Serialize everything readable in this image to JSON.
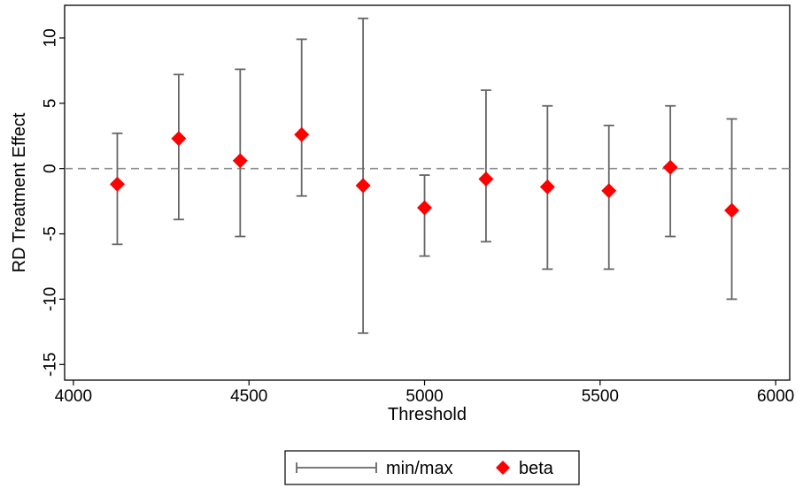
{
  "chart_data": {
    "type": "scatter",
    "title": "",
    "xlabel": "Threshold",
    "ylabel": "RD Treatment Effect",
    "xlim": [
      3975,
      6040
    ],
    "ylim": [
      -16.2,
      12.5
    ],
    "xticks": [
      4000,
      4500,
      5000,
      5500,
      6000
    ],
    "yticks": [
      -15,
      -10,
      -5,
      0,
      5,
      10
    ],
    "reference_line": {
      "y": 0,
      "style": "dashed"
    },
    "grid": false,
    "legend": {
      "placement": "bottom-center",
      "entries": [
        "min/max",
        "beta"
      ]
    },
    "series": [
      {
        "name": "min/max",
        "kind": "range",
        "color": "#666666",
        "x": [
          4125,
          4300,
          4475,
          4650,
          4825,
          5000,
          5175,
          5350,
          5525,
          5700,
          5875
        ],
        "low": [
          -5.8,
          -3.9,
          -5.2,
          -2.1,
          -12.6,
          -6.7,
          -5.6,
          -7.7,
          -7.7,
          -5.2,
          -10.0
        ],
        "high": [
          2.7,
          7.2,
          7.6,
          9.9,
          11.5,
          -0.5,
          6.0,
          4.8,
          3.3,
          4.8,
          3.8
        ]
      },
      {
        "name": "beta",
        "kind": "marker",
        "marker": "diamond",
        "color": "#ff0000",
        "x": [
          4125,
          4300,
          4475,
          4650,
          4825,
          5000,
          5175,
          5350,
          5525,
          5700,
          5875
        ],
        "y": [
          -1.2,
          2.3,
          0.6,
          2.6,
          -1.3,
          -3.0,
          -0.8,
          -1.4,
          -1.7,
          0.1,
          -3.2
        ]
      }
    ]
  }
}
